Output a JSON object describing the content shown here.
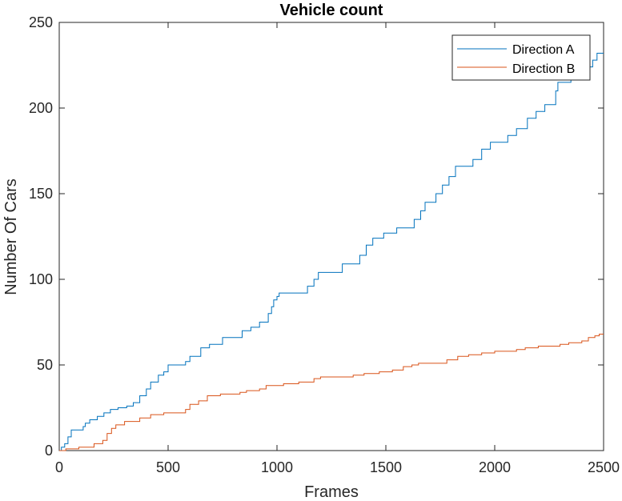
{
  "chart_data": {
    "type": "line",
    "title": "Vehicle count",
    "xlabel": "Frames",
    "ylabel": "Number Of Cars",
    "xlim": [
      0,
      2500
    ],
    "ylim": [
      0,
      250
    ],
    "x_ticks": [
      0,
      500,
      1000,
      1500,
      2000,
      2500
    ],
    "y_ticks": [
      0,
      50,
      100,
      150,
      200,
      250
    ],
    "grid": false,
    "legend_position": "top-right",
    "series": [
      {
        "name": "Direction A",
        "color": "#0072BD",
        "step": true,
        "points": [
          [
            0,
            0
          ],
          [
            10,
            2
          ],
          [
            25,
            4
          ],
          [
            40,
            8
          ],
          [
            55,
            12
          ],
          [
            110,
            14
          ],
          [
            120,
            16
          ],
          [
            140,
            18
          ],
          [
            175,
            20
          ],
          [
            205,
            22
          ],
          [
            235,
            24
          ],
          [
            270,
            25
          ],
          [
            310,
            26
          ],
          [
            340,
            28
          ],
          [
            370,
            32
          ],
          [
            400,
            36
          ],
          [
            420,
            40
          ],
          [
            455,
            44
          ],
          [
            480,
            46
          ],
          [
            500,
            50
          ],
          [
            580,
            52
          ],
          [
            600,
            55
          ],
          [
            650,
            60
          ],
          [
            690,
            62
          ],
          [
            750,
            66
          ],
          [
            840,
            70
          ],
          [
            880,
            72
          ],
          [
            920,
            75
          ],
          [
            960,
            80
          ],
          [
            975,
            84
          ],
          [
            985,
            88
          ],
          [
            1000,
            90
          ],
          [
            1010,
            92
          ],
          [
            1140,
            96
          ],
          [
            1170,
            100
          ],
          [
            1190,
            104
          ],
          [
            1300,
            109
          ],
          [
            1380,
            114
          ],
          [
            1410,
            120
          ],
          [
            1440,
            124
          ],
          [
            1490,
            127
          ],
          [
            1550,
            130
          ],
          [
            1630,
            135
          ],
          [
            1660,
            140
          ],
          [
            1680,
            145
          ],
          [
            1730,
            150
          ],
          [
            1760,
            155
          ],
          [
            1790,
            160
          ],
          [
            1820,
            166
          ],
          [
            1900,
            170
          ],
          [
            1940,
            176
          ],
          [
            1980,
            180
          ],
          [
            2060,
            184
          ],
          [
            2100,
            188
          ],
          [
            2150,
            194
          ],
          [
            2190,
            198
          ],
          [
            2230,
            202
          ],
          [
            2280,
            210
          ],
          [
            2290,
            215
          ],
          [
            2350,
            218
          ],
          [
            2380,
            220
          ],
          [
            2420,
            224
          ],
          [
            2450,
            228
          ],
          [
            2470,
            232
          ],
          [
            2500,
            232
          ]
        ]
      },
      {
        "name": "Direction B",
        "color": "#D95319",
        "step": true,
        "points": [
          [
            0,
            0
          ],
          [
            30,
            1
          ],
          [
            90,
            2
          ],
          [
            160,
            4
          ],
          [
            200,
            6
          ],
          [
            220,
            10
          ],
          [
            240,
            13
          ],
          [
            260,
            15
          ],
          [
            300,
            17
          ],
          [
            370,
            19
          ],
          [
            420,
            21
          ],
          [
            480,
            22
          ],
          [
            580,
            24
          ],
          [
            600,
            27
          ],
          [
            640,
            29
          ],
          [
            680,
            32
          ],
          [
            740,
            33
          ],
          [
            830,
            34
          ],
          [
            860,
            35
          ],
          [
            920,
            36
          ],
          [
            950,
            38
          ],
          [
            1030,
            39
          ],
          [
            1100,
            40
          ],
          [
            1170,
            42
          ],
          [
            1200,
            43
          ],
          [
            1350,
            44
          ],
          [
            1400,
            45
          ],
          [
            1470,
            46
          ],
          [
            1530,
            47
          ],
          [
            1580,
            49
          ],
          [
            1620,
            50
          ],
          [
            1650,
            51
          ],
          [
            1780,
            53
          ],
          [
            1830,
            55
          ],
          [
            1880,
            56
          ],
          [
            1940,
            57
          ],
          [
            2000,
            58
          ],
          [
            2100,
            59
          ],
          [
            2140,
            60
          ],
          [
            2200,
            61
          ],
          [
            2300,
            62
          ],
          [
            2340,
            63
          ],
          [
            2400,
            64
          ],
          [
            2430,
            66
          ],
          [
            2460,
            67
          ],
          [
            2480,
            68
          ],
          [
            2500,
            68
          ]
        ]
      }
    ]
  }
}
